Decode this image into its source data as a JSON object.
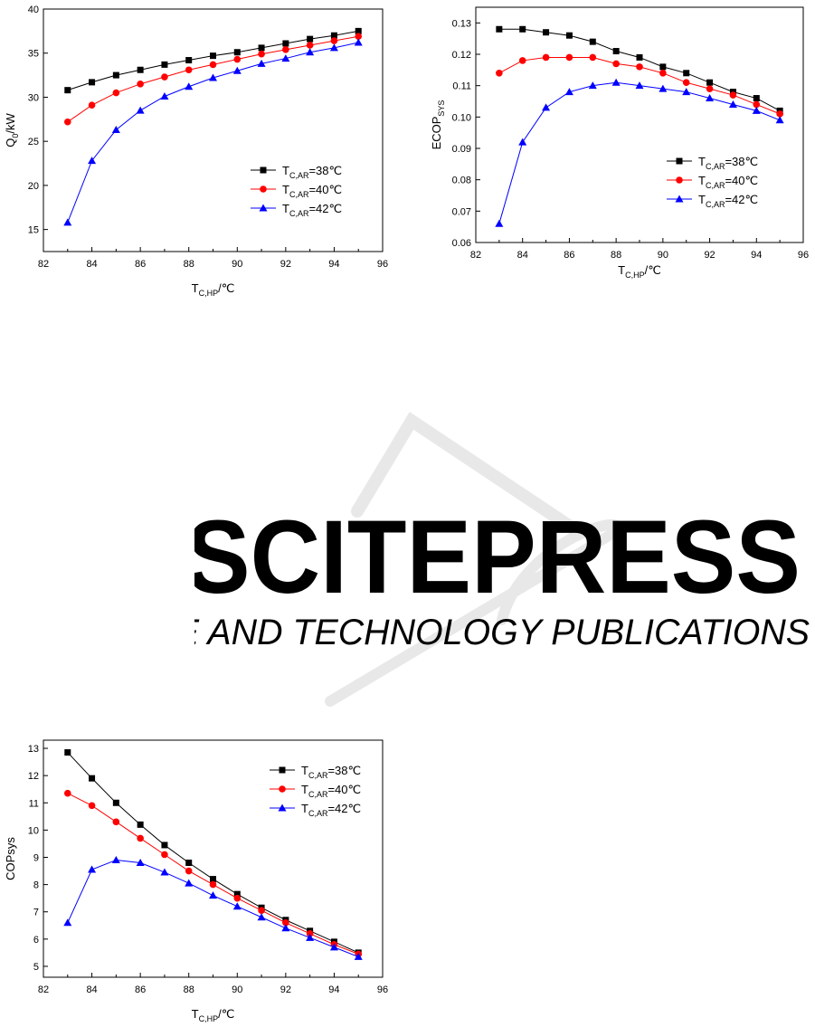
{
  "colors": {
    "series1": "#000000",
    "series2": "#ff0000",
    "series3": "#0000ff",
    "watermark": "#e6e6e6"
  },
  "watermark": {
    "text": "SCITEPRESS",
    "subtext": "SCIENCE AND TECHNOLOGY PUBLICATIONS"
  },
  "chart_data": [
    {
      "type": "line",
      "xlabel": {
        "main": "T",
        "sub": "C,HP",
        "unit": "/℃"
      },
      "ylabel": {
        "main": "Q",
        "sub": "0",
        "unit": "/kW"
      },
      "xlim": [
        82,
        96
      ],
      "ylim": [
        12.5,
        40
      ],
      "xticks": [
        82,
        84,
        86,
        88,
        90,
        92,
        94,
        96
      ],
      "yticks": [
        15,
        20,
        25,
        30,
        35,
        40
      ],
      "legend_position": "right",
      "x": [
        83,
        84,
        85,
        86,
        87,
        88,
        89,
        90,
        91,
        92,
        93,
        94,
        95
      ],
      "series": [
        {
          "label_main": "T",
          "label_sub": "C,AR",
          "label_rest": "=38℃",
          "marker": "square",
          "color": "#000000",
          "values": [
            30.8,
            31.7,
            32.5,
            33.1,
            33.7,
            34.2,
            34.7,
            35.1,
            35.6,
            36.1,
            36.6,
            37.0,
            37.5
          ]
        },
        {
          "label_main": "T",
          "label_sub": "C,AR",
          "label_rest": "=40℃",
          "marker": "circle",
          "color": "#ff0000",
          "values": [
            27.2,
            29.1,
            30.5,
            31.5,
            32.3,
            33.1,
            33.7,
            34.3,
            34.9,
            35.4,
            35.9,
            36.4,
            36.9
          ]
        },
        {
          "label_main": "T",
          "label_sub": "C,AR",
          "label_rest": "=42℃",
          "marker": "triangle",
          "color": "#0000ff",
          "values": [
            15.8,
            22.8,
            26.3,
            28.5,
            30.1,
            31.2,
            32.2,
            33.0,
            33.8,
            34.4,
            35.1,
            35.6,
            36.2
          ]
        }
      ]
    },
    {
      "type": "line",
      "xlabel": {
        "main": "T",
        "sub": "C,HP",
        "unit": "/℃"
      },
      "ylabel": {
        "main": "ECOP",
        "sub": "SYS",
        "unit": ""
      },
      "xlim": [
        82,
        96
      ],
      "ylim": [
        0.06,
        0.135
      ],
      "xticks": [
        82,
        84,
        86,
        88,
        90,
        92,
        94,
        96
      ],
      "yticks": [
        0.06,
        0.07,
        0.08,
        0.09,
        0.1,
        0.11,
        0.12,
        0.13
      ],
      "ytick_labels": [
        "0.06",
        "0.07",
        "0.08",
        "0.09",
        "0.10",
        "0.11",
        "0.12",
        "0.13"
      ],
      "legend_position": "right",
      "x": [
        83,
        84,
        85,
        86,
        87,
        88,
        89,
        90,
        91,
        92,
        93,
        94,
        95
      ],
      "series": [
        {
          "label_main": "T",
          "label_sub": "C,AR",
          "label_rest": "=38℃",
          "marker": "square",
          "color": "#000000",
          "values": [
            0.128,
            0.128,
            0.127,
            0.126,
            0.124,
            0.121,
            0.119,
            0.116,
            0.114,
            0.111,
            0.108,
            0.106,
            0.102
          ]
        },
        {
          "label_main": "T",
          "label_sub": "C,AR",
          "label_rest": "=40℃",
          "marker": "circle",
          "color": "#ff0000",
          "values": [
            0.114,
            0.118,
            0.119,
            0.119,
            0.119,
            0.117,
            0.116,
            0.114,
            0.111,
            0.109,
            0.107,
            0.104,
            0.101
          ]
        },
        {
          "label_main": "T",
          "label_sub": "C,AR",
          "label_rest": "=42℃",
          "marker": "triangle",
          "color": "#0000ff",
          "values": [
            0.066,
            0.092,
            0.103,
            0.108,
            0.11,
            0.111,
            0.11,
            0.109,
            0.108,
            0.106,
            0.104,
            0.102,
            0.099
          ]
        }
      ]
    },
    {
      "type": "line",
      "xlabel": {
        "main": "T",
        "sub": "C,HP",
        "unit": "/℃"
      },
      "ylabel": {
        "main": "COPsys",
        "sub": "",
        "unit": ""
      },
      "xlim": [
        82,
        96
      ],
      "ylim": [
        4.6,
        13.3
      ],
      "xticks": [
        82,
        84,
        86,
        88,
        90,
        92,
        94,
        96
      ],
      "yticks": [
        5,
        6,
        7,
        8,
        9,
        10,
        11,
        12,
        13
      ],
      "legend_position": "top-right",
      "x": [
        83,
        84,
        85,
        86,
        87,
        88,
        89,
        90,
        91,
        92,
        93,
        94,
        95
      ],
      "series": [
        {
          "label_main": "T",
          "label_sub": "C,AR",
          "label_rest": "=38℃",
          "marker": "square",
          "color": "#000000",
          "values": [
            12.85,
            11.9,
            11.0,
            10.2,
            9.45,
            8.8,
            8.2,
            7.65,
            7.15,
            6.7,
            6.3,
            5.9,
            5.5
          ]
        },
        {
          "label_main": "T",
          "label_sub": "C,AR",
          "label_rest": "=40℃",
          "marker": "circle",
          "color": "#ff0000",
          "values": [
            11.35,
            10.9,
            10.3,
            9.7,
            9.1,
            8.5,
            8.0,
            7.5,
            7.05,
            6.6,
            6.2,
            5.8,
            5.45
          ]
        },
        {
          "label_main": "T",
          "label_sub": "C,AR",
          "label_rest": "=42℃",
          "marker": "triangle",
          "color": "#0000ff",
          "values": [
            6.6,
            8.55,
            8.9,
            8.8,
            8.45,
            8.05,
            7.6,
            7.2,
            6.8,
            6.4,
            6.05,
            5.7,
            5.35
          ]
        }
      ]
    }
  ]
}
